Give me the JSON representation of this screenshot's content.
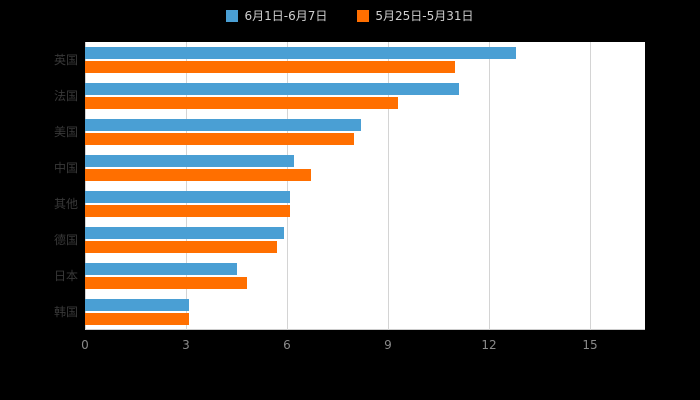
{
  "chart_data": {
    "type": "bar",
    "orientation": "horizontal",
    "title": "",
    "categories": [
      "英国",
      "法国",
      "美国",
      "中国",
      "其他",
      "德国",
      "日本",
      "韩国"
    ],
    "series": [
      {
        "name": "6月1日-6月7日",
        "color": "#4a9fd4",
        "values": [
          12.8,
          11.1,
          8.2,
          6.2,
          6.1,
          5.9,
          4.5,
          3.1
        ]
      },
      {
        "name": "5月25日-5月31日",
        "color": "#ff6f00",
        "values": [
          11.0,
          9.3,
          8.0,
          6.7,
          6.1,
          5.7,
          4.8,
          3.1
        ]
      }
    ],
    "xlim": [
      0,
      15
    ],
    "xticks": [
      0,
      3,
      6,
      9,
      12,
      15
    ],
    "grid": true,
    "legend_position": "top"
  },
  "colors": {
    "background": "#000000",
    "plot_background": "#ffffff",
    "grid_line": "#d4d4d4",
    "y_label": "#383838",
    "x_label": "#8a8a8a",
    "legend_text": "#cfcfcf"
  }
}
